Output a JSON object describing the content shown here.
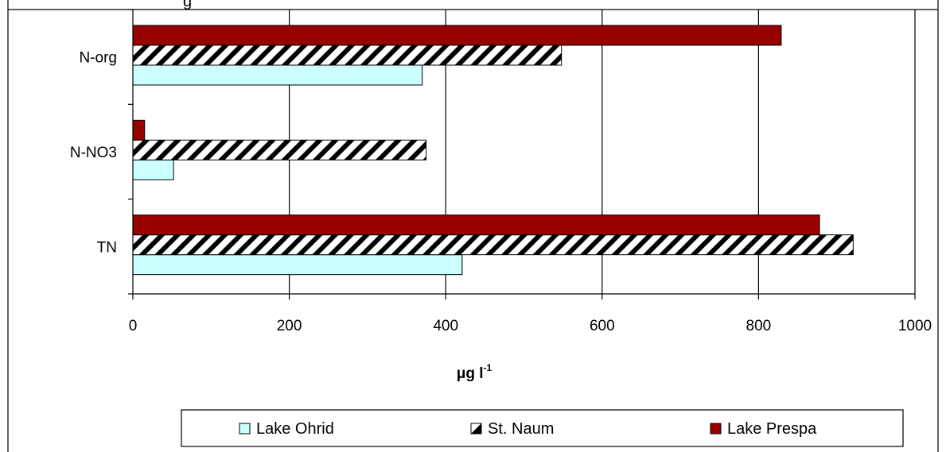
{
  "chart_data": {
    "type": "bar",
    "orientation": "horizontal",
    "title_partial": "g",
    "categories": [
      "N-org",
      "N-NO3",
      "TN"
    ],
    "series": [
      {
        "name": "Lake Ohrid",
        "values": [
          370,
          52,
          421
        ],
        "color": "#ccffff",
        "pattern": "solid"
      },
      {
        "name": "St. Naum",
        "values": [
          548,
          375,
          921
        ],
        "color": "#000000",
        "pattern": "diagonal-hatch"
      },
      {
        "name": "Lake Prespa",
        "values": [
          829,
          15,
          878
        ],
        "color": "#990000",
        "pattern": "solid"
      }
    ],
    "x_ticks": [
      "0",
      "200",
      "400",
      "600",
      "800",
      "1000"
    ],
    "xlim": [
      0,
      1000
    ],
    "xlabel": {
      "base": "μg l",
      "sup": "-1"
    },
    "grid": "vertical",
    "legend": "bottom"
  }
}
